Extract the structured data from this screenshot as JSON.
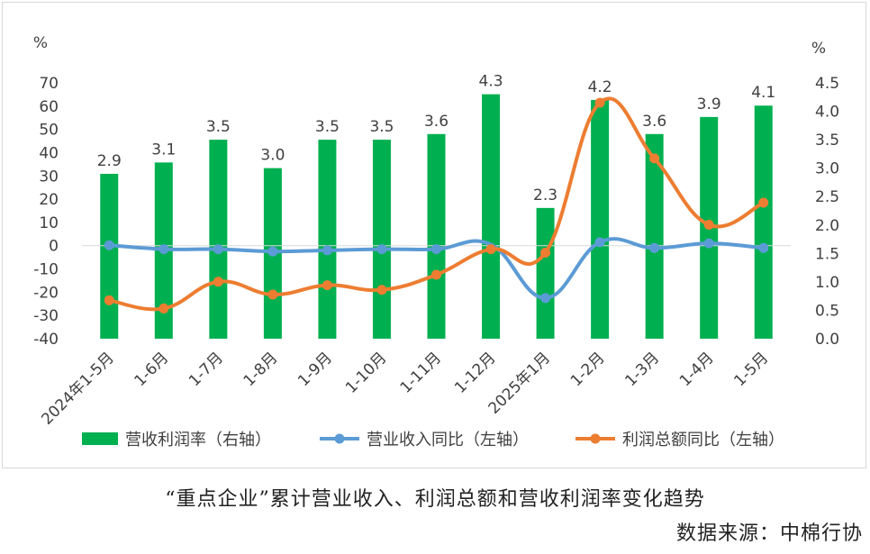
{
  "chart_data": {
    "type": "bar+line",
    "categories": [
      "2024年1-5月",
      "1-6月",
      "1-7月",
      "1-8月",
      "1-9月",
      "1-10月",
      "1-11月",
      "1-12月",
      "2025年1月",
      "1-2月",
      "1-3月",
      "1-4月",
      "1-5月"
    ],
    "left_axis": {
      "unit_label": "%",
      "ylim": [
        -40,
        70
      ],
      "ticks": [
        70,
        60,
        50,
        40,
        30,
        20,
        10,
        0,
        -10,
        -20,
        -30,
        -40
      ]
    },
    "right_axis": {
      "unit_label": "%",
      "ylim": [
        0.0,
        4.5
      ],
      "ticks": [
        "4.5",
        "4.0",
        "3.5",
        "3.0",
        "2.5",
        "2.0",
        "1.5",
        "1.0",
        "0.5",
        "0.0"
      ]
    },
    "series": [
      {
        "name": "营收利润率（右轴）",
        "type": "bar",
        "axis": "right",
        "color": "#00b050",
        "values": [
          2.9,
          3.1,
          3.5,
          3.0,
          3.5,
          3.5,
          3.6,
          4.3,
          2.3,
          4.2,
          3.6,
          3.9,
          4.1
        ],
        "labels": [
          "2.9",
          "3.1",
          "3.5",
          "3.0",
          "3.5",
          "3.5",
          "3.6",
          "4.3",
          "2.3",
          "4.2",
          "3.6",
          "3.9",
          "4.1"
        ]
      },
      {
        "name": "营业收入同比（左轴）",
        "type": "line",
        "axis": "left",
        "color": "#5b9bd5",
        "values": [
          0.2,
          -1.5,
          -1.5,
          -2.5,
          -2.0,
          -1.5,
          -1.5,
          null,
          -22.5,
          1.5,
          -1.0,
          1.0,
          -1.0
        ]
      },
      {
        "name": "利润总额同比（左轴）",
        "type": "line",
        "axis": "left",
        "color": "#ed7d31",
        "values": [
          -23.5,
          -27.0,
          -15.5,
          -21.0,
          -17.0,
          -19.0,
          -12.5,
          -1.5,
          -3.0,
          61.5,
          37.5,
          9.0,
          18.5
        ]
      }
    ],
    "grid": false,
    "legend_position": "bottom"
  },
  "captions": {
    "main": "“重点企业”累计营业收入、利润总额和营收利润率变化趋势",
    "source": "数据来源：中棉行协"
  }
}
